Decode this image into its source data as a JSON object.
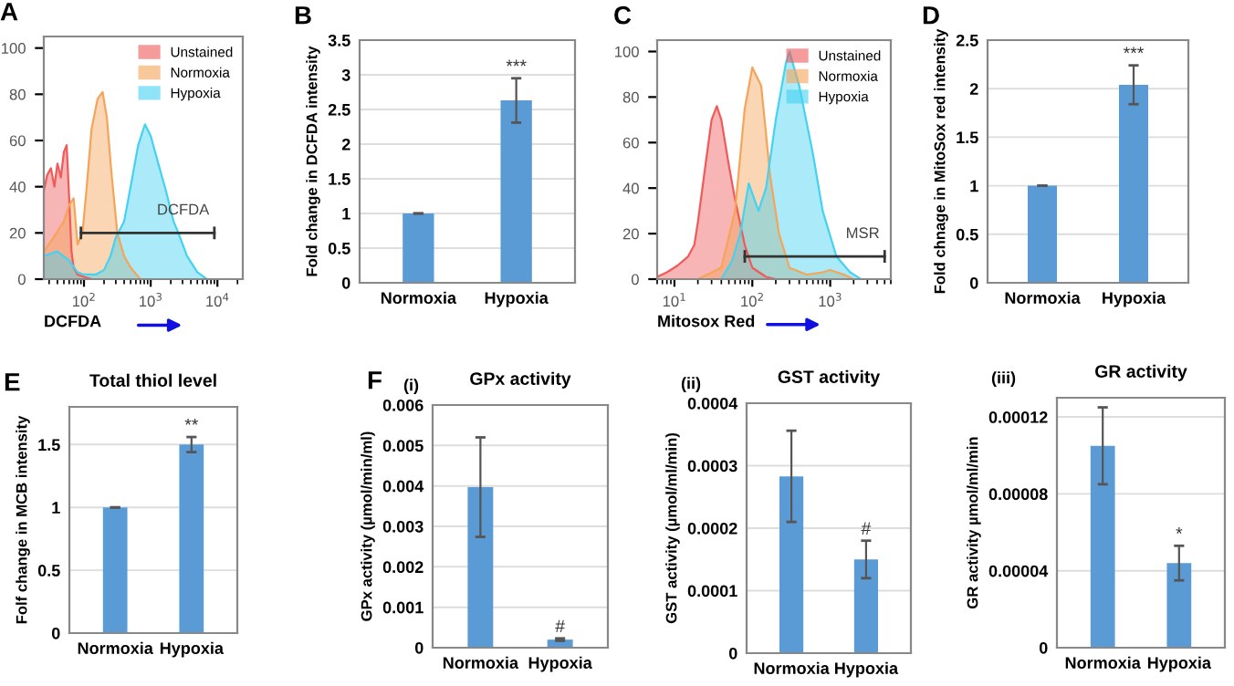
{
  "chart_data": [
    {
      "type": "area",
      "annotations": [
        "A",
        "DCFDA"
      ],
      "xlabel": "DCFDA",
      "log": "x",
      "xlim": [
        25,
        24000
      ],
      "xticks": [
        {
          "value": 100,
          "label": "10$^{2}$"
        },
        {
          "value": 1000,
          "label": "10$^{3}$"
        },
        {
          "value": 10000,
          "label": "10$^{4}$"
        }
      ],
      "ylim": [
        0,
        105
      ],
      "yticks": [
        0,
        20,
        40,
        60,
        80,
        100
      ],
      "legend": "top right",
      "grid": false,
      "series": [
        {
          "name": "Unstained",
          "color": "#f05a5a",
          "x": [
            25,
            28,
            32,
            36,
            40,
            45,
            50,
            55,
            60,
            65,
            70,
            80,
            100,
            130
          ],
          "values": [
            38,
            45,
            48,
            40,
            50,
            44,
            55,
            58,
            35,
            12,
            5,
            2,
            1,
            0
          ]
        },
        {
          "name": "Normoxia",
          "color": "#f5a55a",
          "x": [
            25,
            35,
            50,
            60,
            70,
            80,
            95,
            110,
            130,
            160,
            190,
            220,
            260,
            316,
            400,
            500,
            700
          ],
          "values": [
            12,
            18,
            25,
            32,
            35,
            15,
            20,
            40,
            65,
            78,
            81,
            70,
            45,
            20,
            10,
            5,
            0
          ]
        },
        {
          "name": "Hypoxia",
          "color": "#45d2f2",
          "x": [
            25,
            40,
            60,
            80,
            100,
            150,
            200,
            250,
            300,
            400,
            500,
            650,
            820,
            1000,
            1300,
            1700,
            2200,
            2600,
            3500,
            5000,
            7000
          ],
          "values": [
            10,
            12,
            8,
            3,
            2,
            2,
            4,
            10,
            18,
            25,
            40,
            58,
            67,
            62,
            50,
            38,
            25,
            20,
            10,
            3,
            0
          ]
        },
        {
          "type": "line",
          "color": "#333333",
          "x": [
            90,
            9000
          ],
          "values": [
            20,
            20
          ]
        }
      ]
    },
    {
      "type": "bar",
      "annotations": [
        "B",
        "***"
      ],
      "ylabel": "Fold change in DCFDA intensity",
      "categories": [
        "Normoxia",
        "Hypoxia"
      ],
      "ylim": [
        0,
        3.5
      ],
      "yticks": [
        0,
        0.5,
        1,
        1.5,
        2,
        2.5,
        3,
        3.5
      ],
      "grid": "y",
      "color": "#5b9bd5",
      "values": [
        1,
        2.63
      ],
      "errors": [
        null,
        0.32
      ]
    },
    {
      "type": "area",
      "annotations": [
        "C",
        "MSR"
      ],
      "xlabel": "Mitosox Red",
      "log": "x",
      "xlim": [
        6,
        6000
      ],
      "xticks": [
        {
          "value": 10,
          "label": "10$^{1}$"
        },
        {
          "value": 100,
          "label": "10$^{2}$"
        },
        {
          "value": 1000,
          "label": "10$^{3}$"
        }
      ],
      "ylim": [
        0,
        105
      ],
      "yticks": [
        0,
        20,
        40,
        60,
        80,
        100
      ],
      "legend": "top right",
      "grid": false,
      "series": [
        {
          "name": "Unstained",
          "color": "#f05a5a",
          "x": [
            6,
            8,
            11,
            15,
            18,
            20,
            25,
            30,
            35,
            40,
            50,
            60,
            80,
            100,
            150,
            200
          ],
          "values": [
            1,
            3,
            6,
            10,
            15,
            25,
            50,
            70,
            76,
            70,
            50,
            35,
            15,
            5,
            1,
            0
          ]
        },
        {
          "name": "Normoxia",
          "color": "#f5a55a",
          "x": [
            20,
            40,
            60,
            80,
            100,
            130,
            170,
            220,
            300,
            500,
            800,
            1000,
            1500,
            2000
          ],
          "values": [
            0,
            5,
            30,
            75,
            93,
            85,
            45,
            20,
            5,
            2,
            3,
            4,
            2,
            0
          ]
        },
        {
          "name": "Hypoxia",
          "color": "#45d2f2",
          "x": [
            40,
            55,
            70,
            90,
            120,
            150,
            200,
            270,
            300,
            400,
            600,
            800,
            1200,
            1800,
            2500
          ],
          "values": [
            0,
            8,
            20,
            42,
            30,
            40,
            70,
            95,
            100,
            85,
            55,
            30,
            10,
            3,
            0
          ]
        },
        {
          "type": "line",
          "color": "#333333",
          "x": [
            80,
            5000
          ],
          "values": [
            10,
            10
          ]
        }
      ]
    },
    {
      "type": "bar",
      "annotations": [
        "D",
        "***"
      ],
      "ylabel": "Fold chnage in MitoSox red intensity",
      "categories": [
        "Normoxia",
        "Hypoxia"
      ],
      "ylim": [
        0,
        2.5
      ],
      "yticks": [
        0,
        0.5,
        1,
        1.5,
        2,
        2.5
      ],
      "grid": "y",
      "color": "#5b9bd5",
      "values": [
        1,
        2.04
      ],
      "errors": [
        null,
        0.2
      ]
    },
    {
      "type": "bar",
      "title": "Total thiol level",
      "annotations": [
        "E",
        "**"
      ],
      "ylabel": "Folf change in MCB intensity",
      "categories": [
        "Normoxia",
        "Hypoxia"
      ],
      "ylim": [
        0,
        1.8
      ],
      "yticks": [
        0,
        0.5,
        1,
        1.5
      ],
      "grid": "y",
      "color": "#5b9bd5",
      "values": [
        1,
        1.5
      ],
      "errors": [
        null,
        0.06
      ]
    },
    {
      "type": "bar",
      "title": "GPx activity",
      "annotations": [
        "F",
        "(i)",
        "#"
      ],
      "ylabel": "GPx activity (µmol/min/ml)",
      "categories": [
        "Normoxia",
        "Hypoxia"
      ],
      "ylim": [
        0,
        0.006
      ],
      "yticks": [
        0,
        0.001,
        0.002,
        0.003,
        0.004,
        0.005,
        0.006
      ],
      "grid": "y",
      "color": "#5b9bd5",
      "values": [
        0.00397,
        0.0002
      ],
      "errors": [
        0.00123,
        3e-05
      ]
    },
    {
      "type": "bar",
      "title": "GST activity",
      "annotations": [
        "(ii)",
        "#"
      ],
      "ylabel": "GST activity (µmol/ml/min)",
      "categories": [
        "Normoxia",
        "Hypoxia"
      ],
      "ylim": [
        0,
        0.0004
      ],
      "yticks": [
        0,
        0.0001,
        0.0002,
        0.0003,
        0.0004
      ],
      "grid": "y",
      "color": "#5b9bd5",
      "values": [
        0.000283,
        0.00015
      ],
      "errors": [
        7.3e-05,
        3e-05
      ]
    },
    {
      "type": "bar",
      "title": "GR activity",
      "annotations": [
        "(iii)",
        "*"
      ],
      "ylabel": "GR activity µmol/ml/min",
      "categories": [
        "Normoxia",
        "Hypoxia"
      ],
      "ylim": [
        0,
        0.00013
      ],
      "yticks": [
        0,
        {
          "value": 4e-05,
          "label": "0.00004"
        },
        {
          "value": 8e-05,
          "label": "0.00008"
        },
        {
          "value": 0.00012,
          "label": "0.00012"
        }
      ],
      "grid": "y",
      "color": "#5b9bd5",
      "values": [
        0.000105,
        4.4e-05
      ],
      "errors": [
        2e-05,
        9e-06
      ]
    }
  ]
}
